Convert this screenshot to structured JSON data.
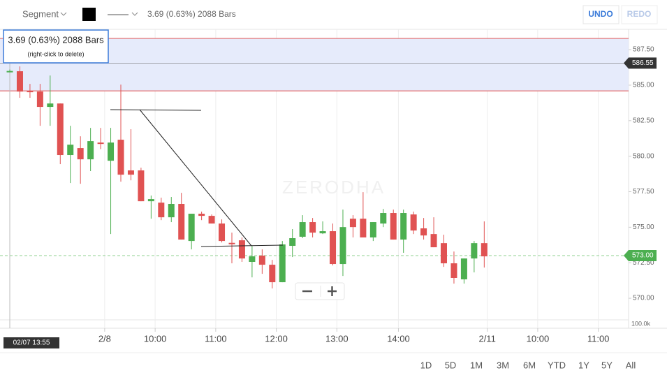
{
  "toolbar": {
    "segment": "Segment",
    "measure": "3.69 (0.63%) 2088 Bars",
    "undo": "UNDO",
    "redo": "REDO"
  },
  "tooltip": {
    "title": "3.69 (0.63%) 2088 Bars",
    "hint": "(right-click to delete)"
  },
  "watermark": "ZERODHA",
  "chart_data": {
    "type": "candlestick",
    "open": [
      586.0,
      585.98,
      584.6,
      584.55,
      583.47,
      583.71,
      580.08,
      580.57,
      579.78,
      580.96,
      579.68,
      581.16,
      579.0,
      579.0,
      576.83,
      576.73,
      575.7,
      576.64,
      574.03,
      575.95,
      575.8,
      575.26,
      573.9,
      574.08,
      572.56,
      573.0,
      572.36,
      571.13,
      573.69,
      574.33,
      575.36,
      574.57,
      574.72,
      572.41,
      575.6,
      575.6,
      574.28,
      575.26,
      576.0,
      574.13,
      575.9,
      574.92,
      574.52,
      573.88,
      572.46,
      571.33,
      572.8,
      573.88
    ],
    "high": [
      586.1,
      586.32,
      585.09,
      585.09,
      585.68,
      583.71,
      582.14,
      581.4,
      581.99,
      581.99,
      581.99,
      585.04,
      581.9,
      579.19,
      577.23,
      577.08,
      577.13,
      577.42,
      575.95,
      576.1,
      575.9,
      575.55,
      574.62,
      574.28,
      573.69,
      573.44,
      572.7,
      574.03,
      574.87,
      575.85,
      575.65,
      575.41,
      575.26,
      576.24,
      575.85,
      577.47,
      575.36,
      576.29,
      576.24,
      576.24,
      576.1,
      575.65,
      575.7,
      574.47,
      573.29,
      572.8,
      574.03,
      575.41
    ],
    "low": [
      585.9,
      584.11,
      584.11,
      582.14,
      582.14,
      579.44,
      578.11,
      578.06,
      578.95,
      580.5,
      574.52,
      578.21,
      578.3,
      576.83,
      575.6,
      575.5,
      575.36,
      574.13,
      573.44,
      575.5,
      575.26,
      573.93,
      572.46,
      572.56,
      571.47,
      571.72,
      570.69,
      571.13,
      572.9,
      574.23,
      574.28,
      574.52,
      572.31,
      571.57,
      574.28,
      574.28,
      574.03,
      575.01,
      574.13,
      573.2,
      574.52,
      574.13,
      573.59,
      572.21,
      571.03,
      571.03,
      571.82,
      572.16
    ],
    "close": [
      586.0,
      584.55,
      584.55,
      583.47,
      583.71,
      580.08,
      580.81,
      579.78,
      581.06,
      580.86,
      580.96,
      578.7,
      578.7,
      576.83,
      576.98,
      575.7,
      576.64,
      574.13,
      575.95,
      575.8,
      575.26,
      574.03,
      573.85,
      572.8,
      572.95,
      572.36,
      571.13,
      573.79,
      574.23,
      575.36,
      574.62,
      574.72,
      572.41,
      575.01,
      575.01,
      574.28,
      575.36,
      576.0,
      574.13,
      576.0,
      574.77,
      574.42,
      573.59,
      572.46,
      571.43,
      572.8,
      573.88,
      572.95
    ],
    "up_color": "#4caf50",
    "down_color": "#e05252",
    "xlim": [
      -0.97,
      61.3
    ],
    "xticks": [
      {
        "value": 9.4,
        "label": "2/8"
      },
      {
        "value": 14.4,
        "label": "10:00"
      },
      {
        "value": 20.4,
        "label": "11:00"
      },
      {
        "value": 26.4,
        "label": "12:00"
      },
      {
        "value": 32.4,
        "label": "13:00"
      },
      {
        "value": 38.5,
        "label": "14:00"
      },
      {
        "value": 47.3,
        "label": "2/11"
      },
      {
        "value": 52.3,
        "label": "10:00"
      },
      {
        "value": 58.3,
        "label": "11:00"
      }
    ],
    "ylim": [
      568.48,
      588.93
    ],
    "yticks": [
      {
        "value": 587.5,
        "label": "587.50"
      },
      {
        "value": 585,
        "label": "585.00"
      },
      {
        "value": 582.5,
        "label": "582.50"
      },
      {
        "value": 580,
        "label": "580.00"
      },
      {
        "value": 577.5,
        "label": "577.50"
      },
      {
        "value": 575,
        "label": "575.00"
      },
      {
        "value": 572.5,
        "label": "572.50"
      },
      {
        "value": 570,
        "label": "570.00"
      }
    ],
    "range": [
      584.6,
      588.29
    ],
    "last_price": {
      "value": 586.55,
      "label": "586.55"
    },
    "crosshair_price": {
      "value": 573,
      "label": "573.00"
    },
    "crosshair_time": "02/07 13:55",
    "volume_label": "100.0k"
  },
  "periods": [
    "1D",
    "5D",
    "1M",
    "3M",
    "6M",
    "YTD",
    "1Y",
    "5Y",
    "All"
  ]
}
